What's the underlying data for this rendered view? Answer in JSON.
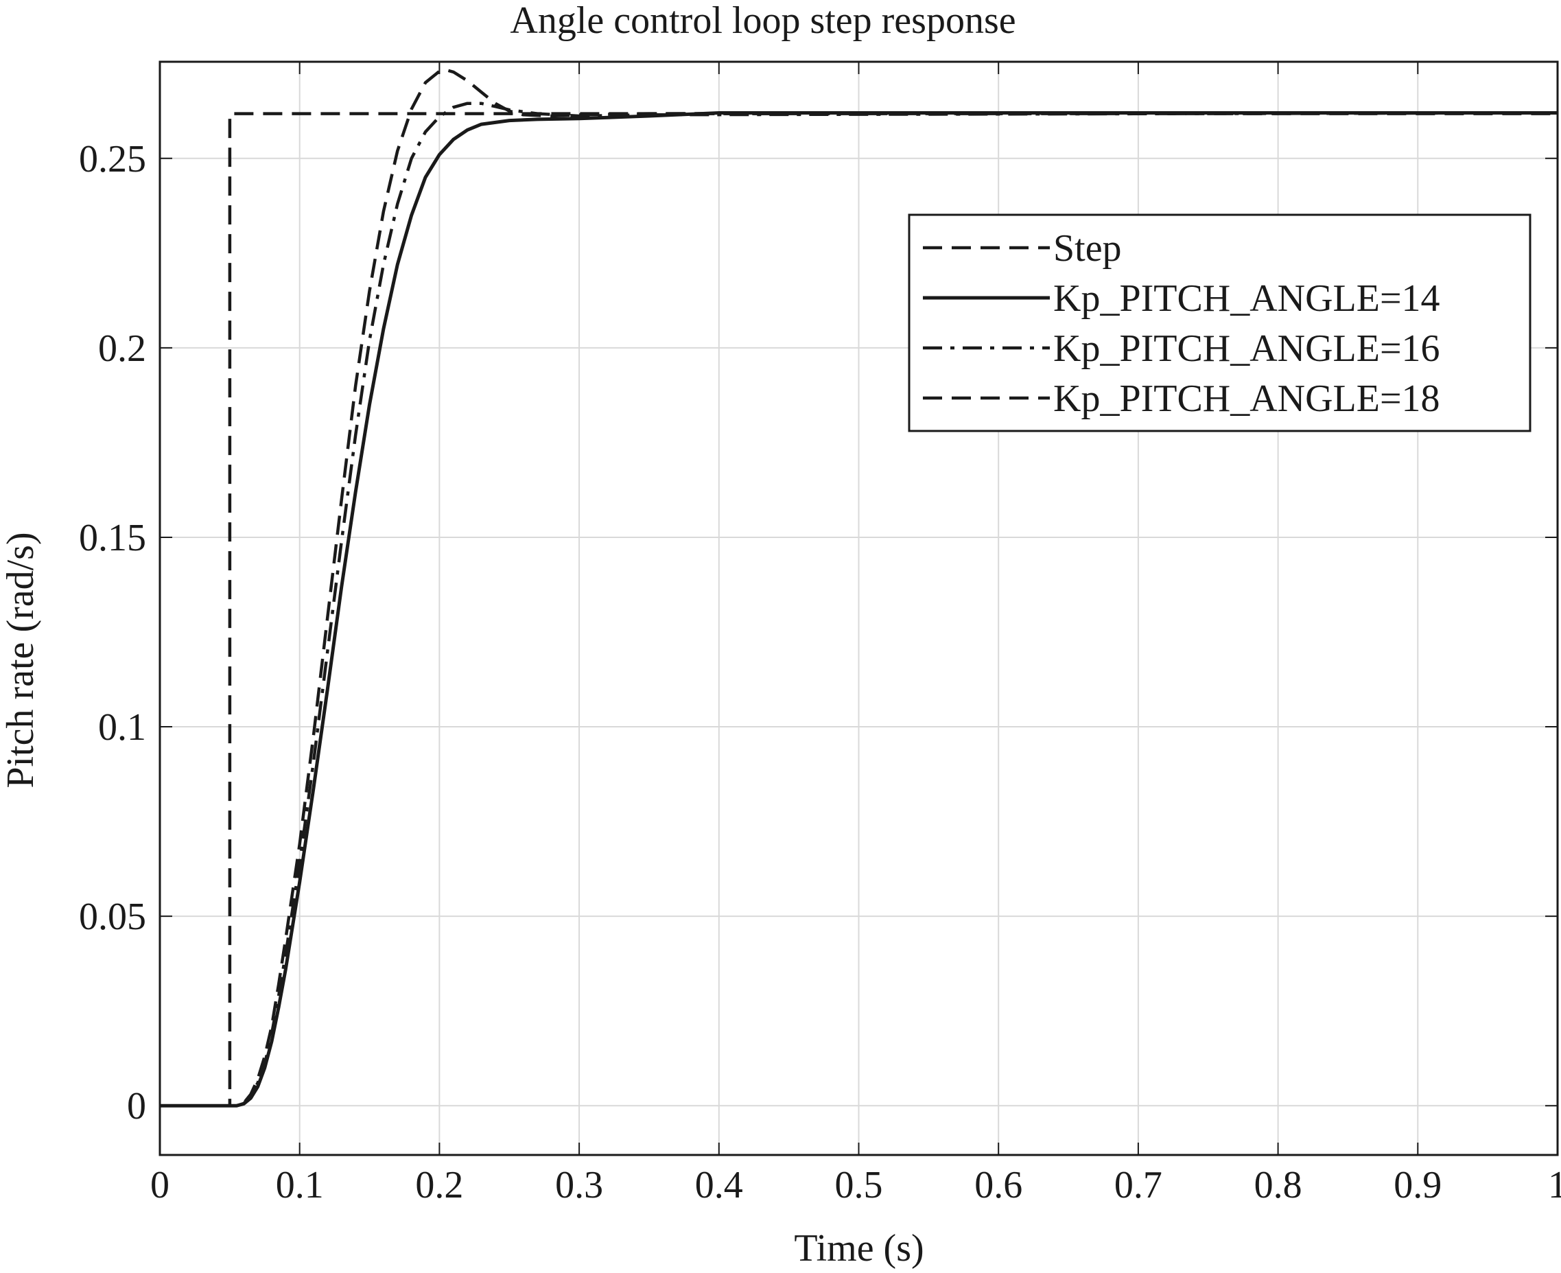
{
  "chart_data": {
    "type": "line",
    "title": "Angle control loop step response",
    "xlabel": "Time (s)",
    "ylabel": "Pitch rate (rad/s)",
    "xlim": [
      0,
      1
    ],
    "ylim": [
      -0.013,
      0.2755
    ],
    "xticks": [
      0,
      0.1,
      0.2,
      0.3,
      0.4,
      0.5,
      0.6,
      0.7,
      0.8,
      0.9,
      1
    ],
    "xtick_labels": [
      "0",
      "0.1",
      "0.2",
      "0.3",
      "0.4",
      "0.5",
      "0.6",
      "0.7",
      "0.8",
      "0.9",
      "1"
    ],
    "yticks": [
      0,
      0.05,
      0.1,
      0.15,
      0.2,
      0.25
    ],
    "ytick_labels": [
      "0",
      "0.05",
      "0.1",
      "0.15",
      "0.2",
      "0.25"
    ],
    "grid": true,
    "legend_position": "top-right",
    "colors": {
      "line": "#1a1a1a",
      "grid": "#d9d9d9",
      "axes": "#1a1a1a"
    },
    "series": [
      {
        "name": "Step",
        "style": "dashed",
        "x": [
          0,
          0.05,
          0.05,
          1
        ],
        "y": [
          0,
          0,
          0.2618,
          0.2618
        ]
      },
      {
        "name": "Kp_PITCH_ANGLE=14",
        "style": "solid",
        "x": [
          0,
          0.055,
          0.06,
          0.065,
          0.07,
          0.075,
          0.08,
          0.085,
          0.09,
          0.1,
          0.11,
          0.12,
          0.13,
          0.14,
          0.15,
          0.16,
          0.17,
          0.18,
          0.19,
          0.2,
          0.21,
          0.22,
          0.23,
          0.25,
          0.27,
          0.3,
          0.35,
          0.4,
          1
        ],
        "y": [
          0,
          0,
          0.0005,
          0.002,
          0.005,
          0.01,
          0.017,
          0.026,
          0.036,
          0.059,
          0.084,
          0.11,
          0.137,
          0.162,
          0.185,
          0.205,
          0.222,
          0.235,
          0.245,
          0.251,
          0.255,
          0.2575,
          0.259,
          0.26,
          0.2603,
          0.2605,
          0.2612,
          0.262,
          0.262
        ]
      },
      {
        "name": "Kp_PITCH_ANGLE=16",
        "style": "dashdot",
        "x": [
          0,
          0.055,
          0.06,
          0.065,
          0.07,
          0.075,
          0.08,
          0.085,
          0.09,
          0.1,
          0.11,
          0.12,
          0.13,
          0.14,
          0.15,
          0.16,
          0.17,
          0.18,
          0.19,
          0.2,
          0.21,
          0.22,
          0.23,
          0.24,
          0.25,
          0.27,
          0.3,
          0.35,
          1
        ],
        "y": [
          0,
          0,
          0.0006,
          0.0025,
          0.006,
          0.011,
          0.019,
          0.029,
          0.04,
          0.064,
          0.091,
          0.12,
          0.149,
          0.177,
          0.202,
          0.222,
          0.238,
          0.25,
          0.257,
          0.261,
          0.2635,
          0.2645,
          0.2645,
          0.2637,
          0.2628,
          0.2618,
          0.2612,
          0.2615,
          0.262
        ]
      },
      {
        "name": "Kp_PITCH_ANGLE=18",
        "style": "dashed",
        "x": [
          0,
          0.055,
          0.06,
          0.065,
          0.07,
          0.075,
          0.08,
          0.085,
          0.09,
          0.1,
          0.11,
          0.12,
          0.13,
          0.14,
          0.15,
          0.16,
          0.17,
          0.18,
          0.19,
          0.2,
          0.205,
          0.21,
          0.22,
          0.23,
          0.24,
          0.25,
          0.26,
          0.28,
          0.3,
          0.35,
          1
        ],
        "y": [
          0,
          0,
          0.0007,
          0.003,
          0.007,
          0.013,
          0.021,
          0.032,
          0.044,
          0.069,
          0.098,
          0.129,
          0.16,
          0.19,
          0.215,
          0.236,
          0.252,
          0.263,
          0.27,
          0.273,
          0.2733,
          0.2728,
          0.2705,
          0.2675,
          0.2645,
          0.2625,
          0.2615,
          0.2612,
          0.2615,
          0.2618,
          0.262
        ]
      }
    ]
  }
}
